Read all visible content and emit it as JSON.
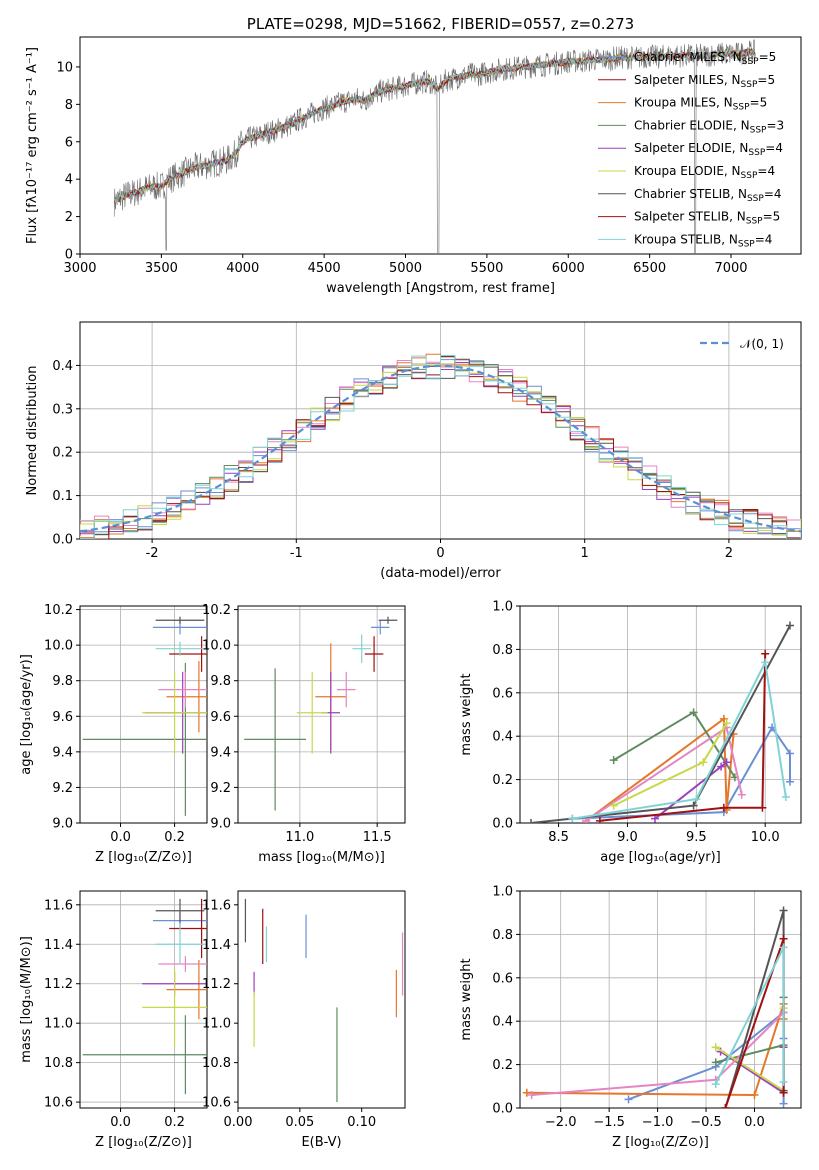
{
  "colors": [
    "#6a8fd6",
    "#e6762a",
    "#5e8c5e",
    "#9b3fbf",
    "#e585c3",
    "#c9d84a",
    "#555555",
    "#a01010",
    "#7fd3d6"
  ],
  "spectrum_colors": [
    "#6a8fd6",
    "#a01010",
    "#e6762a",
    "#5e8c5e",
    "#9b3fbf",
    "#c9d84a",
    "#555555",
    "#a01010",
    "#7fd3d6"
  ],
  "chart_data": [
    {
      "id": "spectrum",
      "type": "line",
      "title": "PLATE=0298, MJD=51662, FIBERID=0557, z=0.273",
      "xlabel": "wavelength [Angstrom, rest frame]",
      "ylabel": "Flux [fλ10⁻¹⁷ erg cm⁻² s⁻¹ A⁻¹]",
      "xlim": [
        3000,
        7430
      ],
      "ylim": [
        0,
        11.6
      ],
      "xticks": [
        3000,
        3500,
        4000,
        4500,
        5000,
        5500,
        6000,
        6500,
        7000
      ],
      "yticks": [
        0,
        2,
        4,
        6,
        8,
        10
      ],
      "legend": [
        "Chabrier MILES, N_SSP=5",
        "Salpeter MILES, N_SSP=5",
        "Kroupa MILES, N_SSP=5",
        "Chabrier ELODIE, N_SSP=3",
        "Salpeter ELODIE, N_SSP=4",
        "Kroupa ELODIE, N_SSP=4",
        "Chabrier STELIB, N_SSP=4",
        "Salpeter STELIB, N_SSP=5",
        "Kroupa STELIB, N_SSP=4"
      ],
      "legend_placement": "upper-right",
      "x": [
        3210,
        3250,
        3300,
        3350,
        3400,
        3450,
        3500,
        3550,
        3600,
        3650,
        3700,
        3750,
        3800,
        3850,
        3900,
        3950,
        4000,
        4050,
        4100,
        4150,
        4200,
        4250,
        4300,
        4350,
        4400,
        4450,
        4500,
        4550,
        4600,
        4650,
        4700,
        4750,
        4800,
        4850,
        4900,
        4950,
        5000,
        5050,
        5100,
        5150,
        5200,
        5250,
        5300,
        5350,
        5400,
        5450,
        5500,
        5550,
        5600,
        5650,
        5700,
        5750,
        5800,
        5850,
        5900,
        5950,
        6000,
        6050,
        6100,
        6150,
        6200,
        6250,
        6300,
        6350,
        6400,
        6450,
        6500,
        6550,
        6600,
        6650,
        6700,
        6750,
        6800,
        6850,
        6900,
        6950,
        7000,
        7050,
        7100,
        7150
      ],
      "y": [
        2.8,
        3.0,
        3.2,
        3.3,
        3.5,
        3.6,
        3.6,
        4.0,
        4.2,
        4.4,
        4.6,
        4.7,
        4.8,
        4.9,
        5.0,
        5.3,
        6.0,
        6.2,
        6.3,
        6.5,
        6.6,
        6.8,
        6.9,
        7.2,
        7.4,
        7.6,
        7.8,
        7.9,
        8.1,
        8.2,
        8.3,
        8.2,
        8.5,
        8.7,
        8.8,
        8.9,
        9.0,
        9.1,
        9.2,
        9.2,
        8.8,
        9.3,
        9.4,
        9.5,
        9.6,
        9.6,
        9.7,
        9.8,
        9.9,
        9.9,
        10.0,
        10.0,
        10.1,
        10.1,
        10.2,
        10.2,
        10.3,
        10.3,
        10.3,
        10.4,
        10.4,
        10.4,
        10.5,
        10.5,
        10.5,
        10.5,
        10.6,
        10.5,
        10.6,
        10.6,
        10.6,
        10.6,
        10.6,
        10.6,
        10.7,
        10.7,
        10.7,
        10.7,
        10.8,
        10.8
      ]
    },
    {
      "id": "residuals",
      "type": "line",
      "title": "",
      "xlabel": "(data-model)/error",
      "ylabel": "Normed distribution",
      "xlim": [
        -2.5,
        2.5
      ],
      "ylim": [
        0,
        0.5
      ],
      "xticks": [
        -2,
        -1,
        0,
        1,
        2
      ],
      "yticks": [
        0.0,
        0.1,
        0.2,
        0.3,
        0.4
      ],
      "legend": [
        "𝒩(0, 1)"
      ],
      "legend_placement": "upper-right",
      "grid": true
    },
    {
      "id": "age-vs-Z",
      "type": "scatter",
      "xlabel": "Z [log₁₀(Z/Z⊙)]",
      "ylabel": "age  [log₁₀(age/yr)]",
      "xlim": [
        -0.15,
        0.32
      ],
      "ylim": [
        9.0,
        10.22
      ],
      "xticks": [
        0.0,
        0.2
      ],
      "xticklabels": [
        "0.0",
        "0.2"
      ],
      "yticks": [
        9.0,
        9.2,
        9.4,
        9.6,
        9.8,
        10.0,
        10.2
      ],
      "grid": true,
      "points": [
        {
          "x": 0.22,
          "y": 10.1,
          "xerr": 0.1,
          "yerr": 0.04
        },
        {
          "x": 0.29,
          "y": 9.71,
          "xerr": 0.12,
          "yerr": 0.2
        },
        {
          "x": 0.24,
          "y": 9.47,
          "xerr": 0.38,
          "yerr": 0.43
        },
        {
          "x": 0.23,
          "y": 9.62,
          "xerr": 0.14,
          "yerr": 0.23
        },
        {
          "x": 0.24,
          "y": 9.75,
          "xerr": 0.1,
          "yerr": 0.1
        },
        {
          "x": 0.2,
          "y": 9.62,
          "xerr": 0.12,
          "yerr": 0.23
        },
        {
          "x": 0.22,
          "y": 10.14,
          "xerr": 0.09,
          "yerr": 0.02
        },
        {
          "x": 0.3,
          "y": 9.95,
          "xerr": 0.12,
          "yerr": 0.1
        },
        {
          "x": 0.22,
          "y": 9.98,
          "xerr": 0.09,
          "yerr": 0.04
        }
      ]
    },
    {
      "id": "age-vs-mass",
      "type": "scatter",
      "xlabel": "mass [log₁₀(M/M⊙)]",
      "ylabel": "",
      "xlim": [
        10.6,
        11.68
      ],
      "ylim": [
        9.0,
        10.22
      ],
      "xticks": [
        11.0,
        11.5
      ],
      "xticklabels": [
        "11.0",
        "11.5"
      ],
      "yticks": [
        9.0,
        9.2,
        9.4,
        9.6,
        9.8,
        10.0,
        10.2
      ],
      "grid": true,
      "points": [
        {
          "x": 11.52,
          "y": 10.1,
          "xerr": 0.06,
          "yerr": 0.04
        },
        {
          "x": 11.2,
          "y": 9.71,
          "xerr": 0.1,
          "yerr": 0.3
        },
        {
          "x": 10.84,
          "y": 9.47,
          "xerr": 0.2,
          "yerr": 0.4
        },
        {
          "x": 11.2,
          "y": 9.62,
          "xerr": 0.06,
          "yerr": 0.23
        },
        {
          "x": 11.3,
          "y": 9.75,
          "xerr": 0.06,
          "yerr": 0.1
        },
        {
          "x": 11.08,
          "y": 9.62,
          "xerr": 0.1,
          "yerr": 0.23
        },
        {
          "x": 11.57,
          "y": 10.14,
          "xerr": 0.06,
          "yerr": 0.02
        },
        {
          "x": 11.48,
          "y": 9.95,
          "xerr": 0.06,
          "yerr": 0.1
        },
        {
          "x": 11.4,
          "y": 9.98,
          "xerr": 0.06,
          "yerr": 0.08
        }
      ]
    },
    {
      "id": "weight-vs-age",
      "type": "line",
      "xlabel": "age  [log₁₀(age/yr)]",
      "ylabel": "mass weight",
      "xlim": [
        8.22,
        10.26
      ],
      "ylim": [
        0,
        1.0
      ],
      "xticks": [
        8.5,
        9.0,
        9.5,
        10.0
      ],
      "xticklabels": [
        "8.5",
        "9.0",
        "9.5",
        "10.0"
      ],
      "yticks": [
        0.0,
        0.2,
        0.4,
        0.6,
        0.8,
        1.0
      ],
      "grid": true,
      "series": [
        {
          "x": [
            8.6,
            9.7,
            10.05,
            10.18,
            10.18
          ],
          "y": [
            0.02,
            0.05,
            0.44,
            0.32,
            0.19
          ]
        },
        {
          "x": [
            8.7,
            9.7,
            9.72,
            9.77
          ],
          "y": [
            0.01,
            0.48,
            0.06,
            0.41
          ]
        },
        {
          "x": [
            8.9,
            9.48,
            9.78
          ],
          "y": [
            0.29,
            0.51,
            0.21
          ]
        },
        {
          "x": [
            9.2,
            9.68,
            9.72
          ],
          "y": [
            0.02,
            0.26,
            0.28
          ]
        },
        {
          "x": [
            8.7,
            9.72,
            9.83
          ],
          "y": [
            0.01,
            0.44,
            0.13
          ]
        },
        {
          "x": [
            8.9,
            9.55,
            9.72
          ],
          "y": [
            0.08,
            0.28,
            0.46
          ]
        },
        {
          "x": [
            8.3,
            9.48,
            10.18
          ],
          "y": [
            0.0,
            0.08,
            0.91
          ]
        },
        {
          "x": [
            8.8,
            9.7,
            9.98,
            10.0
          ],
          "y": [
            0.01,
            0.07,
            0.07,
            0.78
          ]
        },
        {
          "x": [
            8.6,
            9.5,
            10.0,
            10.15
          ],
          "y": [
            0.02,
            0.11,
            0.74,
            0.12
          ]
        }
      ]
    },
    {
      "id": "mass-vs-Z",
      "type": "scatter",
      "xlabel": "Z [log₁₀(Z/Z⊙)]",
      "ylabel": "mass [log₁₀(M/M⊙)]",
      "xlim": [
        -0.15,
        0.32
      ],
      "ylim": [
        10.57,
        11.67
      ],
      "xticks": [
        0.0,
        0.2
      ],
      "xticklabels": [
        "0.0",
        "0.2"
      ],
      "yticks": [
        10.6,
        10.8,
        11.0,
        11.2,
        11.4,
        11.6
      ],
      "grid": true,
      "points": [
        {
          "x": 0.22,
          "y": 11.52,
          "xerr": 0.1,
          "yerr": 0.04
        },
        {
          "x": 0.29,
          "y": 11.17,
          "xerr": 0.12,
          "yerr": 0.15
        },
        {
          "x": 0.24,
          "y": 10.84,
          "xerr": 0.38,
          "yerr": 0.2
        },
        {
          "x": 0.2,
          "y": 11.2,
          "xerr": 0.12,
          "yerr": 0.06
        },
        {
          "x": 0.24,
          "y": 11.3,
          "xerr": 0.1,
          "yerr": 0.04
        },
        {
          "x": 0.2,
          "y": 11.08,
          "xerr": 0.12,
          "yerr": 0.2
        },
        {
          "x": 0.22,
          "y": 11.57,
          "xerr": 0.09,
          "yerr": 0.06
        },
        {
          "x": 0.3,
          "y": 11.48,
          "xerr": 0.12,
          "yerr": 0.15
        },
        {
          "x": 0.22,
          "y": 11.4,
          "xerr": 0.09,
          "yerr": 0.1
        }
      ]
    },
    {
      "id": "mass-vs-EBV",
      "type": "scatter",
      "xlabel": "E(B-V)",
      "ylabel": "",
      "xlim": [
        0.0,
        0.135
      ],
      "ylim": [
        10.57,
        11.67
      ],
      "xticks": [
        0.0,
        0.05,
        0.1
      ],
      "xticklabels": [
        "0.00",
        "0.05",
        "0.10"
      ],
      "yticks": [
        10.6,
        10.8,
        11.0,
        11.2,
        11.4,
        11.6
      ],
      "grid": false,
      "points": [
        {
          "x": 0.055,
          "y": 11.44,
          "xerr": 0,
          "yerr": 0.11
        },
        {
          "x": 0.128,
          "y": 11.15,
          "xerr": 0,
          "yerr": 0.12
        },
        {
          "x": 0.08,
          "y": 10.84,
          "xerr": 0,
          "yerr": 0.24
        },
        {
          "x": 0.013,
          "y": 11.2,
          "xerr": 0,
          "yerr": 0.06
        },
        {
          "x": 0.133,
          "y": 11.3,
          "xerr": 0,
          "yerr": 0.16
        },
        {
          "x": 0.013,
          "y": 11.02,
          "xerr": 0,
          "yerr": 0.14
        },
        {
          "x": 0.006,
          "y": 11.52,
          "xerr": 0,
          "yerr": 0.11
        },
        {
          "x": 0.02,
          "y": 11.44,
          "xerr": 0,
          "yerr": 0.14
        },
        {
          "x": 0.023,
          "y": 11.4,
          "xerr": 0,
          "yerr": 0.09
        }
      ]
    },
    {
      "id": "weight-vs-Z",
      "type": "line",
      "xlabel": "Z [log₁₀(Z/Z⊙)]",
      "ylabel": "mass weight",
      "xlim": [
        -2.42,
        0.48
      ],
      "ylim": [
        0,
        1.0
      ],
      "xticks": [
        -2.0,
        -1.5,
        -1.0,
        -0.5,
        0.0
      ],
      "xticklabels": [
        "−2.0",
        "−1.5",
        "−1.0",
        "−0.5",
        "0.0"
      ],
      "yticks": [
        0.0,
        0.2,
        0.4,
        0.6,
        0.8,
        1.0
      ],
      "grid": true,
      "series": [
        {
          "x": [
            -1.3,
            -0.4,
            0.3,
            0.3,
            0.3
          ],
          "y": [
            0.04,
            0.19,
            0.44,
            0.32,
            0.02
          ]
        },
        {
          "x": [
            -2.35,
            0.0,
            0.3,
            0.3
          ],
          "y": [
            0.07,
            0.06,
            0.48,
            0.41
          ]
        },
        {
          "x": [
            -0.4,
            0.3,
            0.3
          ],
          "y": [
            0.21,
            0.29,
            0.51
          ]
        },
        {
          "x": [
            -0.35,
            0.3,
            0.3
          ],
          "y": [
            0.26,
            0.07,
            0.28
          ]
        },
        {
          "x": [
            -2.3,
            -0.4,
            0.3
          ],
          "y": [
            0.06,
            0.13,
            0.44
          ]
        },
        {
          "x": [
            -0.4,
            0.3,
            0.3
          ],
          "y": [
            0.28,
            0.08,
            0.46
          ]
        },
        {
          "x": [
            -0.3,
            0.3,
            0.3
          ],
          "y": [
            0.0,
            0.91,
            0.08
          ]
        },
        {
          "x": [
            -0.3,
            0.3,
            0.3
          ],
          "y": [
            0.0,
            0.78,
            0.07
          ]
        },
        {
          "x": [
            -0.4,
            0.3,
            0.3
          ],
          "y": [
            0.11,
            0.74,
            0.12
          ]
        }
      ]
    }
  ]
}
